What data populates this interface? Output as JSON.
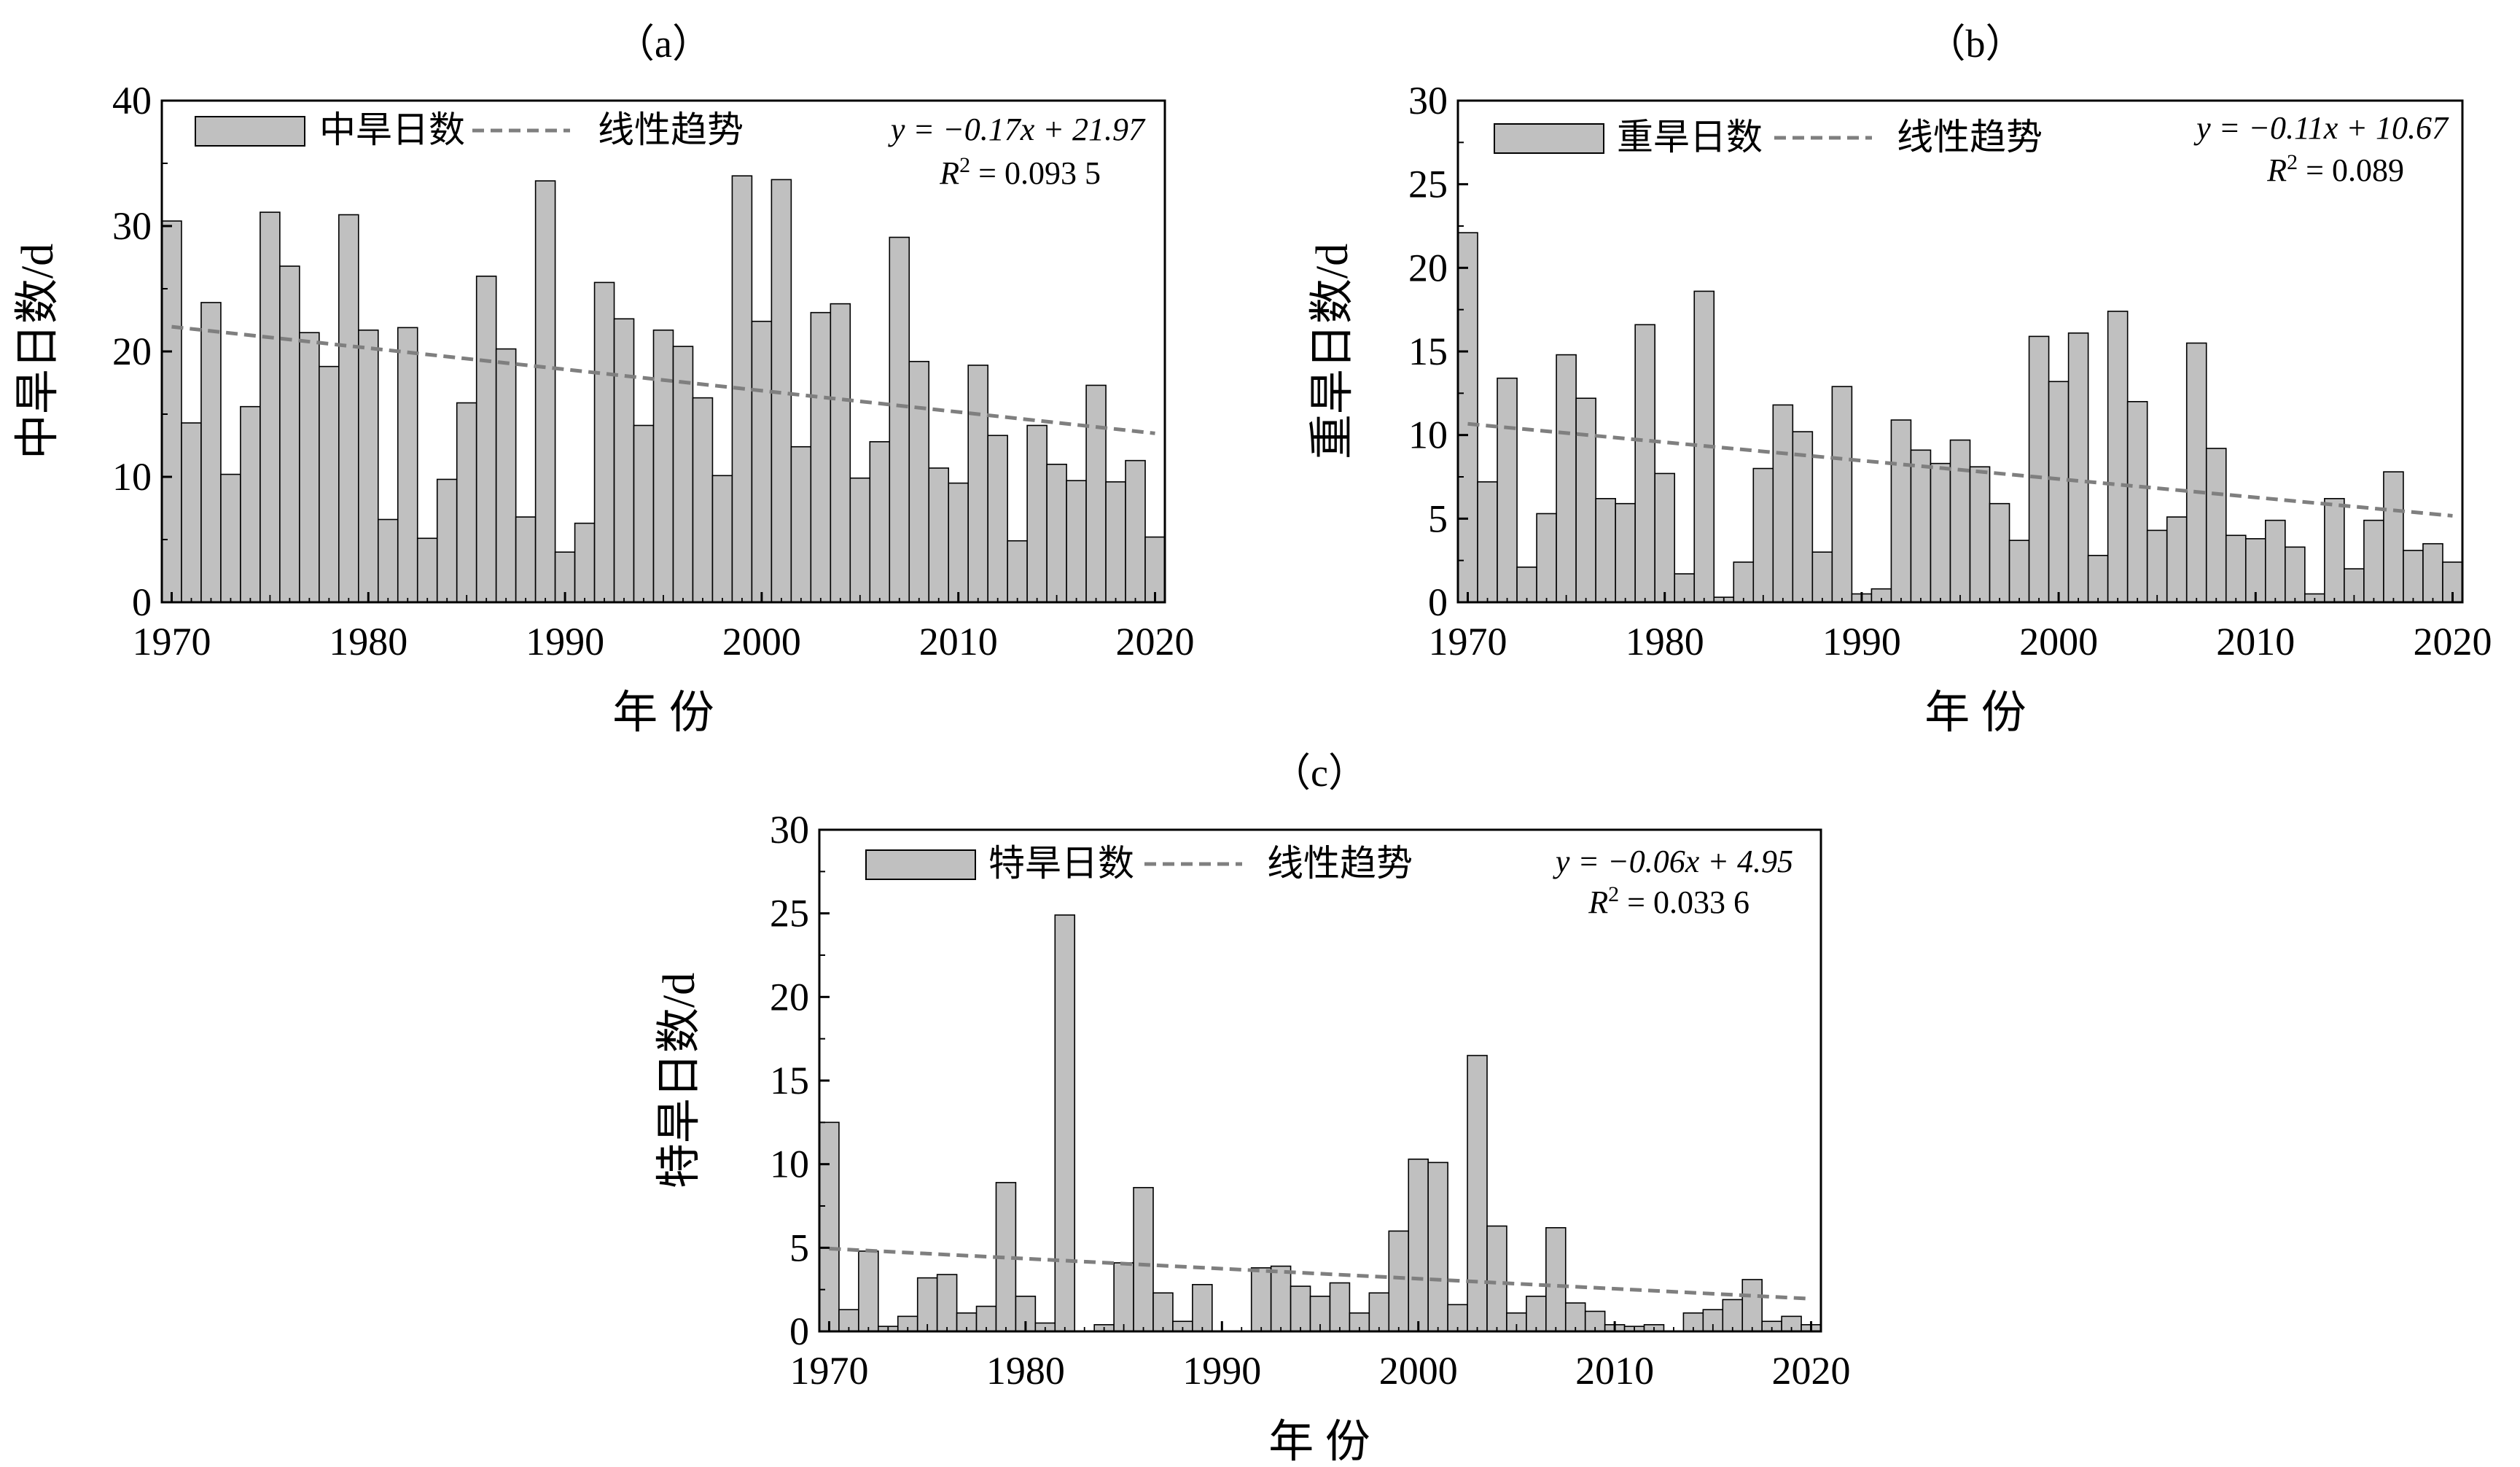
{
  "charts": [
    {
      "panel": "（a）",
      "chart_data": {
        "type": "bar",
        "ylabel": "中旱日数/d",
        "xlabel": "年 份",
        "x_ticks": [
          "1970",
          "1980",
          "1990",
          "2000",
          "2010",
          "2020"
        ],
        "y_ticks": [
          "0",
          "10",
          "20",
          "30",
          "40"
        ],
        "xlim": [
          1969.5,
          2020.5
        ],
        "ylim": [
          0,
          40
        ],
        "series": [
          {
            "name": "中旱日数",
            "years": [
              1970,
              1971,
              1972,
              1973,
              1974,
              1975,
              1976,
              1977,
              1978,
              1979,
              1980,
              1981,
              1982,
              1983,
              1984,
              1985,
              1986,
              1987,
              1988,
              1989,
              1990,
              1991,
              1992,
              1993,
              1994,
              1995,
              1996,
              1997,
              1998,
              1999,
              2000,
              2001,
              2002,
              2003,
              2004,
              2005,
              2006,
              2007,
              2008,
              2009,
              2010,
              2011,
              2012,
              2013,
              2014,
              2015,
              2016,
              2017,
              2018,
              2019,
              2020
            ],
            "values": [
              30.4,
              14.3,
              23.9,
              10.2,
              15.6,
              31.1,
              26.8,
              21.5,
              18.8,
              30.9,
              21.7,
              6.6,
              21.9,
              5.1,
              9.8,
              15.9,
              26.0,
              20.2,
              6.8,
              33.6,
              4.0,
              6.3,
              25.5,
              22.6,
              14.1,
              21.7,
              20.4,
              16.3,
              10.1,
              34.0,
              22.4,
              33.7,
              12.4,
              23.1,
              23.8,
              9.9,
              12.8,
              29.1,
              19.2,
              10.7,
              9.5,
              18.9,
              13.3,
              4.9,
              14.1,
              11.0,
              9.7,
              17.3,
              9.6,
              11.3,
              5.2
            ]
          },
          {
            "name": "线性趋势",
            "line": true,
            "slope": -0.17,
            "start_value": 21.97
          }
        ],
        "equation": {
          "y_part": "y = −0.17x + 21.97",
          "r2_label": "R",
          "r2_value": " = 0.093 5"
        }
      }
    },
    {
      "panel": "（b）",
      "chart_data": {
        "type": "bar",
        "ylabel": "重旱日数/d",
        "xlabel": "年 份",
        "x_ticks": [
          "1970",
          "1980",
          "1990",
          "2000",
          "2010",
          "2020"
        ],
        "y_ticks": [
          "0",
          "5",
          "10",
          "15",
          "20",
          "25",
          "30"
        ],
        "xlim": [
          1969.5,
          2020.5
        ],
        "ylim": [
          0,
          30
        ],
        "series": [
          {
            "name": "重旱日数",
            "years": [
              1970,
              1971,
              1972,
              1973,
              1974,
              1975,
              1976,
              1977,
              1978,
              1979,
              1980,
              1981,
              1982,
              1983,
              1984,
              1985,
              1986,
              1987,
              1988,
              1989,
              1990,
              1991,
              1992,
              1993,
              1994,
              1995,
              1996,
              1997,
              1998,
              1999,
              2000,
              2001,
              2002,
              2003,
              2004,
              2005,
              2006,
              2007,
              2008,
              2009,
              2010,
              2011,
              2012,
              2013,
              2014,
              2015,
              2016,
              2017,
              2018,
              2019,
              2020
            ],
            "values": [
              22.1,
              7.2,
              13.4,
              2.1,
              5.3,
              14.8,
              12.2,
              6.2,
              5.9,
              16.6,
              7.7,
              1.7,
              18.6,
              0.3,
              2.4,
              8.0,
              11.8,
              10.2,
              3.0,
              12.9,
              0.5,
              0.8,
              10.9,
              9.1,
              8.3,
              9.7,
              8.1,
              5.9,
              3.7,
              15.9,
              13.2,
              16.1,
              2.8,
              17.4,
              12.0,
              4.3,
              5.1,
              15.5,
              9.2,
              4.0,
              3.8,
              4.9,
              3.3,
              0.5,
              6.2,
              2.0,
              4.9,
              7.8,
              3.1,
              3.5,
              2.4
            ]
          },
          {
            "name": "线性趋势",
            "line": true,
            "slope": -0.11,
            "start_value": 10.67
          }
        ],
        "equation": {
          "y_part": "y = −0.11x + 10.67",
          "r2_label": "R",
          "r2_value": " = 0.089"
        }
      }
    },
    {
      "panel": "（c）",
      "chart_data": {
        "type": "bar",
        "ylabel": "特旱日数/d",
        "xlabel": "年 份",
        "x_ticks": [
          "1970",
          "1980",
          "1990",
          "2000",
          "2010",
          "2020"
        ],
        "y_ticks": [
          "0",
          "5",
          "10",
          "15",
          "20",
          "25",
          "30"
        ],
        "xlim": [
          1969.5,
          2020.5
        ],
        "ylim": [
          0,
          30
        ],
        "series": [
          {
            "name": "特旱日数",
            "years": [
              1970,
              1971,
              1972,
              1973,
              1974,
              1975,
              1976,
              1977,
              1978,
              1979,
              1980,
              1981,
              1982,
              1983,
              1984,
              1985,
              1986,
              1987,
              1988,
              1989,
              1990,
              1991,
              1992,
              1993,
              1994,
              1995,
              1996,
              1997,
              1998,
              1999,
              2000,
              2001,
              2002,
              2003,
              2004,
              2005,
              2006,
              2007,
              2008,
              2009,
              2010,
              2011,
              2012,
              2013,
              2014,
              2015,
              2016,
              2017,
              2018,
              2019,
              2020
            ],
            "values": [
              12.5,
              1.3,
              4.8,
              0.3,
              0.9,
              3.2,
              3.4,
              1.1,
              1.5,
              8.9,
              2.1,
              0.5,
              24.9,
              0.0,
              0.4,
              4.1,
              8.6,
              2.3,
              0.6,
              2.8,
              0.0,
              0.0,
              3.8,
              3.9,
              2.7,
              2.1,
              2.9,
              1.1,
              2.3,
              6.0,
              10.3,
              10.1,
              1.6,
              16.5,
              6.3,
              1.1,
              2.1,
              6.2,
              1.7,
              1.2,
              0.4,
              0.3,
              0.4,
              0.0,
              1.1,
              1.3,
              1.9,
              3.1,
              0.6,
              0.9,
              0.4
            ]
          },
          {
            "name": "线性趋势",
            "line": true,
            "slope": -0.06,
            "start_value": 4.95
          }
        ],
        "equation": {
          "y_part": "y = −0.06x + 4.95",
          "r2_label": "R",
          "r2_value": " = 0.033 6"
        }
      }
    }
  ]
}
